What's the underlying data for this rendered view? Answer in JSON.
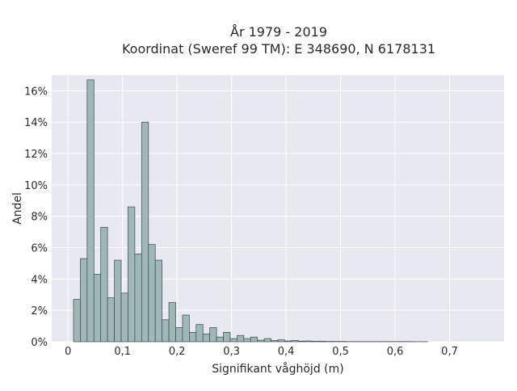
{
  "chart_data": {
    "type": "bar",
    "title_lines": [
      "År 1979 - 2019",
      "Koordinat (Sweref 99 TM): E 348690, N 6178131"
    ],
    "xlabel": "Signifikant våghöjd (m)",
    "ylabel": "Andel",
    "xlim": [
      -0.03,
      0.8
    ],
    "ylim": [
      0,
      0.17
    ],
    "x_ticks": [
      {
        "value": 0.0,
        "label": "0"
      },
      {
        "value": 0.1,
        "label": "0,1"
      },
      {
        "value": 0.2,
        "label": "0,2"
      },
      {
        "value": 0.3,
        "label": "0,3"
      },
      {
        "value": 0.4,
        "label": "0,4"
      },
      {
        "value": 0.5,
        "label": "0,5"
      },
      {
        "value": 0.6,
        "label": "0,6"
      },
      {
        "value": 0.7,
        "label": "0,7"
      }
    ],
    "y_ticks": [
      {
        "value": 0.0,
        "label": "0%"
      },
      {
        "value": 0.02,
        "label": "2%"
      },
      {
        "value": 0.04,
        "label": "4%"
      },
      {
        "value": 0.06,
        "label": "6%"
      },
      {
        "value": 0.08,
        "label": "8%"
      },
      {
        "value": 0.1,
        "label": "10%"
      },
      {
        "value": 0.12,
        "label": "12%"
      },
      {
        "value": 0.14,
        "label": "14%"
      },
      {
        "value": 0.16,
        "label": "16%"
      }
    ],
    "grid": true,
    "bin_width": 0.0125,
    "bin_starts": [
      0.01,
      0.0225,
      0.035,
      0.0475,
      0.06,
      0.0725,
      0.085,
      0.0975,
      0.11,
      0.1225,
      0.135,
      0.1475,
      0.16,
      0.1725,
      0.185,
      0.1975,
      0.21,
      0.2225,
      0.235,
      0.2475,
      0.26,
      0.2725,
      0.285,
      0.2975,
      0.31,
      0.3225,
      0.335,
      0.3475,
      0.36,
      0.3725,
      0.385,
      0.3975,
      0.41,
      0.4225,
      0.435,
      0.4475,
      0.46,
      0.4725,
      0.485,
      0.4975,
      0.51,
      0.5225,
      0.535,
      0.5475,
      0.56,
      0.5725,
      0.585,
      0.5975,
      0.61,
      0.6225,
      0.635,
      0.6475
    ],
    "values": [
      0.027,
      0.053,
      0.167,
      0.043,
      0.073,
      0.028,
      0.052,
      0.031,
      0.086,
      0.056,
      0.14,
      0.062,
      0.052,
      0.014,
      0.025,
      0.009,
      0.017,
      0.006,
      0.011,
      0.005,
      0.009,
      0.003,
      0.006,
      0.002,
      0.004,
      0.002,
      0.003,
      0.001,
      0.002,
      0.0008,
      0.0012,
      0.0005,
      0.0008,
      0.0004,
      0.0005,
      0.0003,
      0.0003,
      0.0002,
      0.0002,
      0.0002,
      0.0001,
      0.0001,
      0.0001,
      0.0001,
      0.0001,
      0.0001,
      0.0001,
      0.0001,
      0.0001,
      0.0001,
      5e-05,
      5e-05
    ],
    "colors": {
      "bar_fill": "#9fb7b7",
      "bar_stroke": "#3a4a4a",
      "plot_bg": "#e8e8f0",
      "grid": "#ffffff"
    }
  }
}
